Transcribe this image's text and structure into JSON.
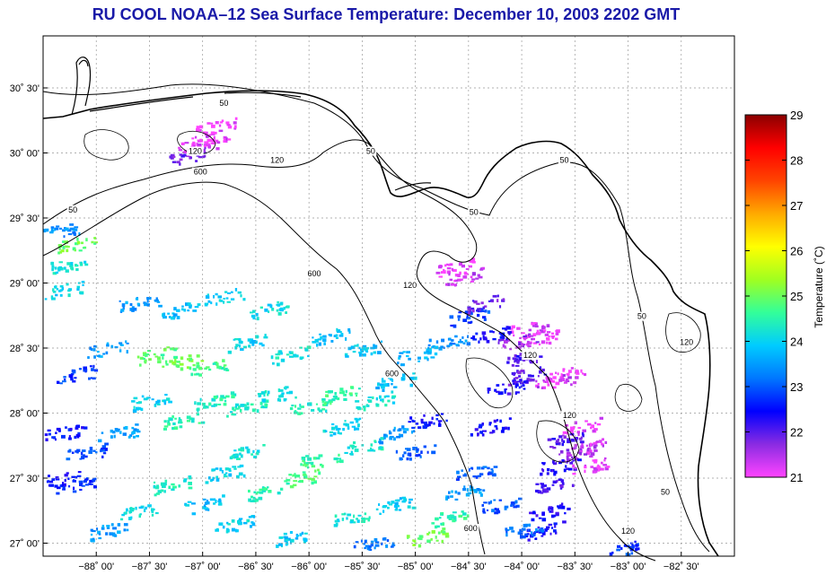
{
  "title": "RU COOL  NOAA–12  Sea Surface Temperature:  December 10, 2003 2202 GMT",
  "map": {
    "lon_range": [
      -88.5,
      -82.0
    ],
    "lat_range": [
      26.9,
      30.9
    ],
    "lat_ticks": [
      {
        "value": 27.0,
        "label": "27˚ 00'"
      },
      {
        "value": 27.5,
        "label": "27˚ 30'"
      },
      {
        "value": 28.0,
        "label": "28˚ 00'"
      },
      {
        "value": 28.5,
        "label": "28˚ 30'"
      },
      {
        "value": 29.0,
        "label": "29˚ 00'"
      },
      {
        "value": 29.5,
        "label": "29˚ 30'"
      },
      {
        "value": 30.0,
        "label": "30˚ 00'"
      },
      {
        "value": 30.5,
        "label": "30˚ 30'"
      }
    ],
    "lon_ticks": [
      {
        "value": -88.0,
        "label": "−88˚ 00'"
      },
      {
        "value": -87.5,
        "label": "−87˚ 30'"
      },
      {
        "value": -87.0,
        "label": "−87˚ 00'"
      },
      {
        "value": -86.5,
        "label": "−86˚ 30'"
      },
      {
        "value": -86.0,
        "label": "−86˚ 00'"
      },
      {
        "value": -85.5,
        "label": "−85˚ 30'"
      },
      {
        "value": -85.0,
        "label": "−85˚ 00'"
      },
      {
        "value": -84.5,
        "label": "−84˚ 30'"
      },
      {
        "value": -84.0,
        "label": "−84˚ 00'"
      },
      {
        "value": -83.5,
        "label": "−83˚ 30'"
      },
      {
        "value": -83.0,
        "label": "−83˚ 00'"
      },
      {
        "value": -82.5,
        "label": "−82˚ 30'"
      }
    ],
    "isobath_labels": [
      {
        "text": "50",
        "lon": -86.8,
        "lat": 30.37
      },
      {
        "text": "120",
        "lon": -87.07,
        "lat": 30.0
      },
      {
        "text": "600",
        "lon": -87.02,
        "lat": 29.84
      },
      {
        "text": "120",
        "lon": -86.3,
        "lat": 29.93
      },
      {
        "text": "50",
        "lon": -85.42,
        "lat": 30.0
      },
      {
        "text": "50",
        "lon": -84.45,
        "lat": 29.53
      },
      {
        "text": "50",
        "lon": -83.6,
        "lat": 29.93
      },
      {
        "text": "600",
        "lon": -85.95,
        "lat": 29.06
      },
      {
        "text": "120",
        "lon": -85.05,
        "lat": 28.97
      },
      {
        "text": "50",
        "lon": -82.87,
        "lat": 28.73
      },
      {
        "text": "600",
        "lon": -85.22,
        "lat": 28.29
      },
      {
        "text": "120",
        "lon": -83.92,
        "lat": 28.43
      },
      {
        "text": "120",
        "lon": -83.55,
        "lat": 27.97
      },
      {
        "text": "120",
        "lon": -82.45,
        "lat": 28.53
      },
      {
        "text": "50",
        "lon": -82.65,
        "lat": 27.38
      },
      {
        "text": "120",
        "lon": -83.0,
        "lat": 27.08
      },
      {
        "text": "600",
        "lon": -84.48,
        "lat": 27.1
      },
      {
        "text": "50",
        "lon": -88.22,
        "lat": 29.55
      }
    ]
  },
  "colorbar": {
    "min": 21,
    "max": 29,
    "tick_labels": [
      "21",
      "22",
      "23",
      "24",
      "25",
      "26",
      "27",
      "28",
      "29"
    ],
    "title": "Temperature (˚C)",
    "colors": [
      "#ff44ff",
      "#8a2be2",
      "#0000ff",
      "#0077ff",
      "#00ccff",
      "#33ff99",
      "#a0ff20",
      "#ffff00",
      "#ffaa00",
      "#ff4400",
      "#ff0000",
      "#8b0000"
    ]
  },
  "sst_patches": [
    {
      "lon": -87.05,
      "lat": 30.06,
      "temp": 21.1
    },
    {
      "lon": -86.95,
      "lat": 30.1,
      "temp": 21.2
    },
    {
      "lon": -87.15,
      "lat": 29.98,
      "temp": 21.9
    },
    {
      "lon": -86.88,
      "lat": 30.2,
      "temp": 21.1
    },
    {
      "lon": -84.65,
      "lat": 29.12,
      "temp": 21.1
    },
    {
      "lon": -84.55,
      "lat": 29.05,
      "temp": 21.3
    },
    {
      "lon": -83.95,
      "lat": 28.65,
      "temp": 21.2
    },
    {
      "lon": -83.85,
      "lat": 28.58,
      "temp": 21.1
    },
    {
      "lon": -84.05,
      "lat": 28.55,
      "temp": 21.6
    },
    {
      "lon": -84.0,
      "lat": 28.42,
      "temp": 22.1
    },
    {
      "lon": -83.95,
      "lat": 28.3,
      "temp": 22.0
    },
    {
      "lon": -84.15,
      "lat": 28.2,
      "temp": 22.3
    },
    {
      "lon": -83.7,
      "lat": 28.25,
      "temp": 21.3
    },
    {
      "lon": -83.6,
      "lat": 28.3,
      "temp": 21.1
    },
    {
      "lon": -83.45,
      "lat": 27.9,
      "temp": 21.1
    },
    {
      "lon": -83.4,
      "lat": 27.75,
      "temp": 21.2
    },
    {
      "lon": -83.5,
      "lat": 27.7,
      "temp": 21.6
    },
    {
      "lon": -83.58,
      "lat": 27.8,
      "temp": 22.0
    },
    {
      "lon": -83.65,
      "lat": 27.6,
      "temp": 22.2
    },
    {
      "lon": -83.7,
      "lat": 27.45,
      "temp": 22.0
    },
    {
      "lon": -83.75,
      "lat": 27.25,
      "temp": 22.3
    },
    {
      "lon": -83.8,
      "lat": 27.1,
      "temp": 22.4
    },
    {
      "lon": -83.35,
      "lat": 27.6,
      "temp": 21.1
    },
    {
      "lon": -84.3,
      "lat": 27.9,
      "temp": 22.4
    },
    {
      "lon": -84.45,
      "lat": 27.55,
      "temp": 23.0
    },
    {
      "lon": -84.55,
      "lat": 27.4,
      "temp": 23.5
    },
    {
      "lon": -84.7,
      "lat": 27.2,
      "temp": 24.5
    },
    {
      "lon": -84.9,
      "lat": 27.05,
      "temp": 25.0
    },
    {
      "lon": -84.2,
      "lat": 27.3,
      "temp": 23.0
    },
    {
      "lon": -84.0,
      "lat": 27.1,
      "temp": 23.2
    },
    {
      "lon": -85.4,
      "lat": 27.0,
      "temp": 23.2
    },
    {
      "lon": -85.0,
      "lat": 27.7,
      "temp": 23.0
    },
    {
      "lon": -85.2,
      "lat": 27.85,
      "temp": 23.5
    },
    {
      "lon": -84.9,
      "lat": 27.95,
      "temp": 22.5
    },
    {
      "lon": -85.5,
      "lat": 27.75,
      "temp": 24.3
    },
    {
      "lon": -85.7,
      "lat": 27.9,
      "temp": 24.0
    },
    {
      "lon": -85.9,
      "lat": 27.65,
      "temp": 24.6
    },
    {
      "lon": -86.1,
      "lat": 27.5,
      "temp": 24.8
    },
    {
      "lon": -86.4,
      "lat": 27.4,
      "temp": 24.5
    },
    {
      "lon": -86.6,
      "lat": 27.7,
      "temp": 24.2
    },
    {
      "lon": -86.8,
      "lat": 27.55,
      "temp": 24.0
    },
    {
      "lon": -87.0,
      "lat": 27.3,
      "temp": 23.8
    },
    {
      "lon": -87.3,
      "lat": 27.45,
      "temp": 24.3
    },
    {
      "lon": -87.6,
      "lat": 27.25,
      "temp": 24.1
    },
    {
      "lon": -87.9,
      "lat": 27.1,
      "temp": 23.5
    },
    {
      "lon": -88.2,
      "lat": 27.45,
      "temp": 22.7
    },
    {
      "lon": -88.35,
      "lat": 27.5,
      "temp": 22.5
    },
    {
      "lon": -88.3,
      "lat": 27.85,
      "temp": 22.5
    },
    {
      "lon": -88.1,
      "lat": 27.7,
      "temp": 22.9
    },
    {
      "lon": -87.8,
      "lat": 27.85,
      "temp": 23.5
    },
    {
      "lon": -87.5,
      "lat": 28.1,
      "temp": 24.0
    },
    {
      "lon": -87.2,
      "lat": 27.95,
      "temp": 24.5
    },
    {
      "lon": -86.9,
      "lat": 28.1,
      "temp": 24.4
    },
    {
      "lon": -86.6,
      "lat": 28.05,
      "temp": 24.3
    },
    {
      "lon": -86.3,
      "lat": 28.15,
      "temp": 24.2
    },
    {
      "lon": -86.0,
      "lat": 28.05,
      "temp": 24.4
    },
    {
      "lon": -85.7,
      "lat": 28.15,
      "temp": 24.6
    },
    {
      "lon": -85.4,
      "lat": 28.1,
      "temp": 24.2
    },
    {
      "lon": -85.2,
      "lat": 28.25,
      "temp": 23.8
    },
    {
      "lon": -87.45,
      "lat": 28.45,
      "temp": 24.8
    },
    {
      "lon": -87.2,
      "lat": 28.4,
      "temp": 25.0
    },
    {
      "lon": -86.95,
      "lat": 28.35,
      "temp": 24.6
    },
    {
      "lon": -86.6,
      "lat": 28.55,
      "temp": 24.0
    },
    {
      "lon": -86.2,
      "lat": 28.45,
      "temp": 24.2
    },
    {
      "lon": -85.8,
      "lat": 28.6,
      "temp": 23.8
    },
    {
      "lon": -85.5,
      "lat": 28.5,
      "temp": 23.9
    },
    {
      "lon": -87.9,
      "lat": 28.5,
      "temp": 23.5
    },
    {
      "lon": -88.2,
      "lat": 28.3,
      "temp": 22.8
    },
    {
      "lon": -88.3,
      "lat": 28.95,
      "temp": 24.0
    },
    {
      "lon": -88.25,
      "lat": 29.15,
      "temp": 24.2
    },
    {
      "lon": -88.35,
      "lat": 29.4,
      "temp": 23.4
    },
    {
      "lon": -88.2,
      "lat": 29.3,
      "temp": 25.0
    },
    {
      "lon": -87.6,
      "lat": 28.85,
      "temp": 23.5
    },
    {
      "lon": -87.2,
      "lat": 28.8,
      "temp": 23.8
    },
    {
      "lon": -86.8,
      "lat": 28.9,
      "temp": 24.0
    },
    {
      "lon": -86.4,
      "lat": 28.8,
      "temp": 24.1
    },
    {
      "lon": -85.2,
      "lat": 27.3,
      "temp": 23.9
    },
    {
      "lon": -85.6,
      "lat": 27.2,
      "temp": 24.2
    },
    {
      "lon": -86.7,
      "lat": 27.15,
      "temp": 24.0
    },
    {
      "lon": -86.2,
      "lat": 27.05,
      "temp": 23.9
    },
    {
      "lon": -84.3,
      "lat": 28.6,
      "temp": 22.4
    },
    {
      "lon": -84.7,
      "lat": 28.55,
      "temp": 23.4
    },
    {
      "lon": -85.0,
      "lat": 28.45,
      "temp": 23.7
    },
    {
      "lon": -84.5,
      "lat": 28.75,
      "temp": 22.9
    },
    {
      "lon": -84.35,
      "lat": 28.85,
      "temp": 21.9
    },
    {
      "lon": -83.1,
      "lat": 26.95,
      "temp": 22.8
    }
  ]
}
